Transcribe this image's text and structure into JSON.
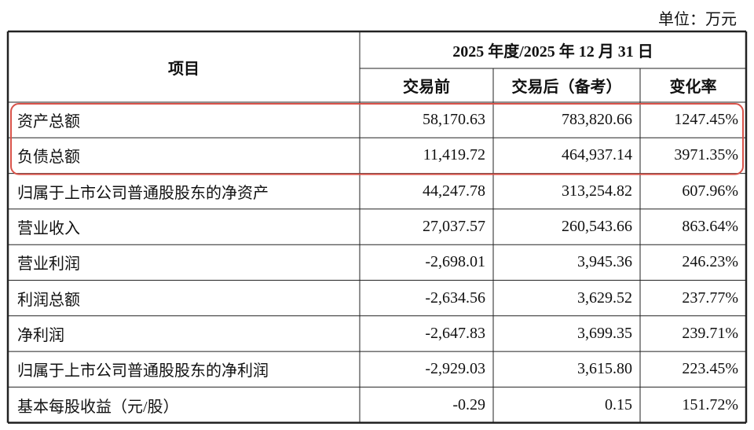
{
  "unit": "单位：万元",
  "header": {
    "item": "项目",
    "period": "2025 年度/2025 年 12 月 31 日",
    "columns": [
      "交易前",
      "交易后（备考）",
      "变化率"
    ]
  },
  "table": {
    "rows": [
      [
        "资产总额",
        "58,170.63",
        "783,820.66",
        "1247.45%"
      ],
      [
        "负债总额",
        "11,419.72",
        "464,937.14",
        "3971.35%"
      ],
      [
        "归属于上市公司普通股股东的净资产",
        "44,247.78",
        "313,254.82",
        "607.96%"
      ],
      [
        "营业收入",
        "27,037.57",
        "260,543.66",
        "863.64%"
      ],
      [
        "营业利润",
        "-2,698.01",
        "3,945.36",
        "246.23%"
      ],
      [
        "利润总额",
        "-2,634.56",
        "3,629.52",
        "237.77%"
      ],
      [
        "净利润",
        "-2,647.83",
        "3,699.35",
        "239.71%"
      ],
      [
        "归属于上市公司普通股股东的净利润",
        "-2,929.03",
        "3,615.80",
        "223.45%"
      ],
      [
        "基本每股收益（元/股）",
        "-0.29",
        "0.15",
        "151.72%"
      ]
    ]
  }
}
